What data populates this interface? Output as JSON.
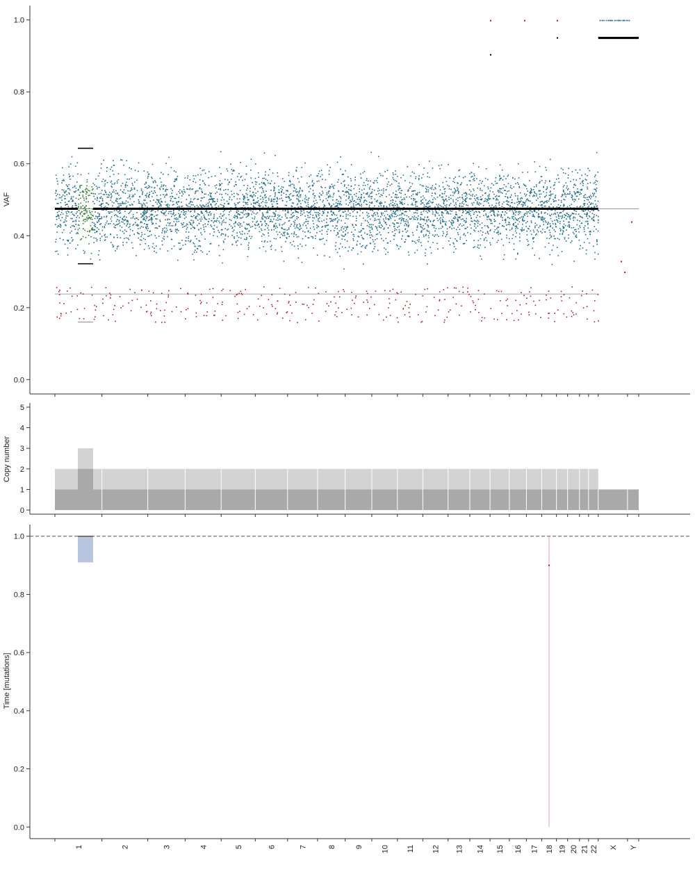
{
  "chart_data": [
    {
      "type": "scatter",
      "ylabel": "VAF",
      "ylim": [
        -0.04,
        1.04
      ],
      "yticks": [
        0.0,
        0.2,
        0.4,
        0.6,
        0.8,
        1.0
      ],
      "ytick_labels": [
        "0.0",
        "0.2",
        "0.4",
        "0.6",
        "0.8",
        "1.0"
      ],
      "grid": false,
      "colors": {
        "clonal": "#1f6f8b",
        "subclonal": "#b2182b",
        "gained": "#2e7d32",
        "expected": "#000000",
        "reference": "#888888"
      },
      "reference_lines": [
        0.475,
        0.238
      ],
      "expected_vaf_segments": [
        {
          "chrom": "1",
          "part": "p",
          "values": [
            0.475
          ]
        },
        {
          "chrom": "1",
          "part": "gain",
          "values": [
            0.643,
            0.322,
            0.16
          ]
        },
        {
          "chrom": "1",
          "part": "q",
          "values": [
            0.475
          ]
        },
        {
          "chrom": "2-22",
          "values": [
            0.475
          ]
        },
        {
          "chrom": "X-Y",
          "values": [
            0.95
          ]
        }
      ],
      "point_summary": {
        "autosome_clonal_range": [
          0.25,
          0.72
        ],
        "autosome_subclonal_range": [
          0.16,
          0.26
        ],
        "xy_points": [
          1.0,
          0.95
        ]
      }
    },
    {
      "type": "bar",
      "ylabel": "Copy number",
      "ylim": [
        -0.2,
        5.2
      ],
      "yticks": [
        0,
        1,
        2,
        3,
        4,
        5
      ],
      "ytick_labels": [
        "0",
        "1",
        "2",
        "3",
        "4",
        "5"
      ],
      "grid": false,
      "colors": {
        "total": "#d3d3d3",
        "minor": "#a9a9a9"
      },
      "segments": [
        {
          "chrom": "1",
          "part": "p",
          "total_cn": 2,
          "minor_cn": 1
        },
        {
          "chrom": "1",
          "part": "gain",
          "total_cn": 3,
          "minor_cn": 2
        },
        {
          "chrom": "1",
          "part": "q",
          "total_cn": 2,
          "minor_cn": 1
        },
        {
          "chrom": "2-22",
          "total_cn": 2,
          "minor_cn": 1
        },
        {
          "chrom": "X",
          "total_cn": 1,
          "minor_cn": 1
        },
        {
          "chrom": "Y",
          "total_cn": 1,
          "minor_cn": 1
        }
      ]
    },
    {
      "type": "bar",
      "ylabel": "Time [mutations]",
      "ylim": [
        -0.04,
        1.04
      ],
      "yticks": [
        0.0,
        0.2,
        0.4,
        0.6,
        0.8,
        1.0
      ],
      "ytick_labels": [
        "0.0",
        "0.2",
        "0.4",
        "0.6",
        "0.8",
        "1.0"
      ],
      "grid": false,
      "colors": {
        "timing_box": "#b8c6e0",
        "marker": "#e39ac9",
        "reference": "#555555"
      },
      "reference_line": 1.0,
      "timing": [
        {
          "chrom": "1",
          "part": "gain",
          "range": [
            0.91,
            1.0
          ]
        },
        {
          "chrom": "18",
          "range": [
            0.0,
            1.0
          ],
          "estimate": 0.9
        }
      ]
    }
  ],
  "chromosomes": {
    "labels": [
      "1",
      "2",
      "3",
      "4",
      "5",
      "6",
      "7",
      "8",
      "9",
      "10",
      "11",
      "12",
      "13",
      "14",
      "15",
      "16",
      "17",
      "18",
      "19",
      "20",
      "21",
      "22",
      "X",
      "Y"
    ],
    "sizes_mb": [
      249.3,
      243.2,
      198.0,
      191.2,
      180.9,
      171.1,
      159.1,
      146.4,
      141.2,
      135.5,
      135.0,
      133.9,
      115.2,
      107.3,
      102.5,
      90.4,
      81.2,
      78.1,
      59.1,
      63.0,
      48.1,
      51.3,
      155.3,
      59.4
    ]
  }
}
